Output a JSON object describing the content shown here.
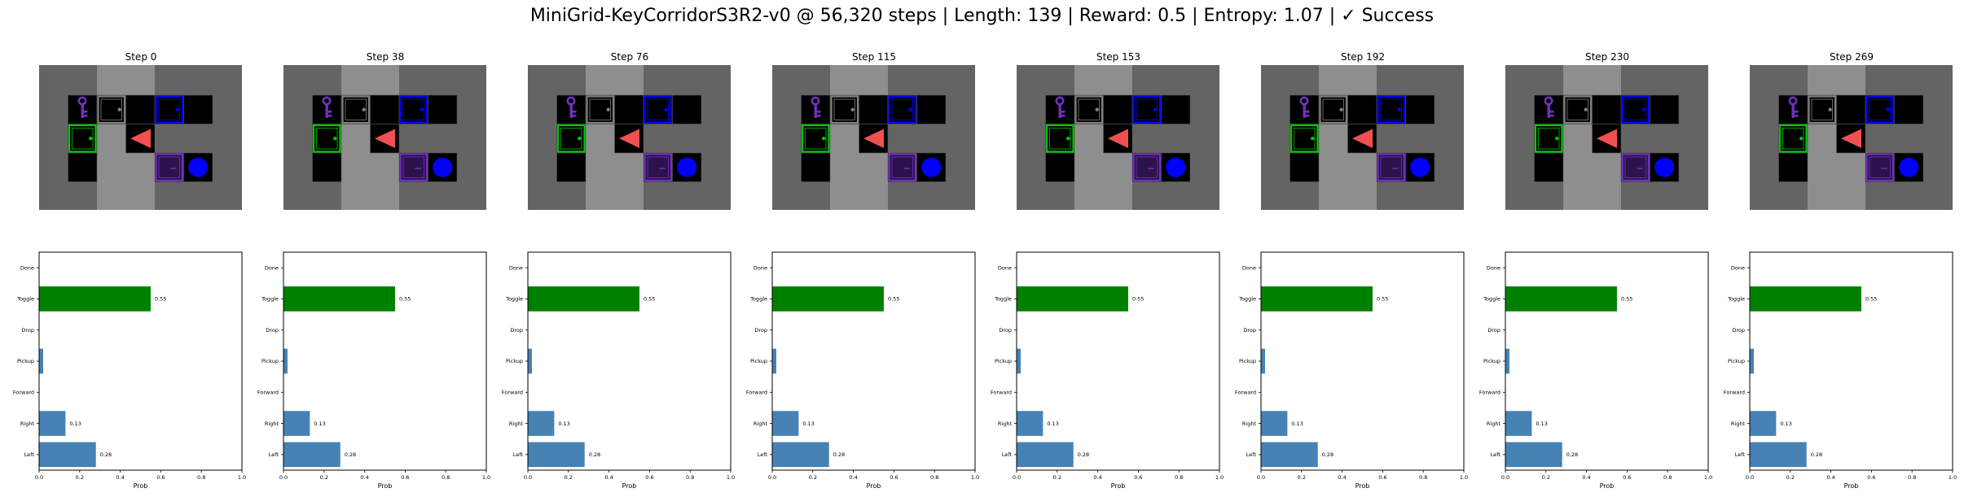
{
  "figure": {
    "title": "MiniGrid-KeyCorridorS3R2-v0 @ 56,320 steps | Length: 139 | Reward: 0.5 | Entropy: 1.07 | ✓ Success"
  },
  "environment": {
    "wall_color": "#646464",
    "corridor_color": "#8e8e8e",
    "cell_color": "#000000",
    "grid_line_color": "#555555",
    "agent_color": "#f05050",
    "agent_direction": "left",
    "key_color": "#7030c0",
    "ball_color": "#0000ff",
    "doors": [
      {
        "color": "#808080",
        "state": "closed"
      },
      {
        "color": "#0000ff",
        "state": "closed"
      },
      {
        "color": "#00c800",
        "state": "closed"
      },
      {
        "color": "#7030c0",
        "state": "locked"
      }
    ]
  },
  "chart_data": [
    {
      "type": "bar",
      "orientation": "horizontal",
      "title": "Step 0",
      "categories": [
        "Left",
        "Right",
        "Forward",
        "Pickup",
        "Drop",
        "Toggle",
        "Done"
      ],
      "values": [
        0.28,
        0.13,
        0,
        0.02,
        0,
        0.55,
        0
      ],
      "value_labels": [
        "0.28",
        "0.13",
        "",
        "",
        "",
        "0.55",
        ""
      ],
      "highlight_index": 5,
      "bar_color": "#4682b4",
      "highlight_color": "#008000",
      "xlabel": "Prob",
      "xlim": [
        0,
        1
      ],
      "xticks": [
        "0.0",
        "0.2",
        "0.4",
        "0.6",
        "0.8",
        "1.0"
      ]
    },
    {
      "type": "bar",
      "orientation": "horizontal",
      "title": "Step 38",
      "categories": [
        "Left",
        "Right",
        "Forward",
        "Pickup",
        "Drop",
        "Toggle",
        "Done"
      ],
      "values": [
        0.28,
        0.13,
        0,
        0.02,
        0,
        0.55,
        0
      ],
      "value_labels": [
        "0.28",
        "0.13",
        "",
        "",
        "",
        "0.55",
        ""
      ],
      "highlight_index": 5,
      "bar_color": "#4682b4",
      "highlight_color": "#008000",
      "xlabel": "Prob",
      "xlim": [
        0,
        1
      ],
      "xticks": [
        "0.0",
        "0.2",
        "0.4",
        "0.6",
        "0.8",
        "1.0"
      ]
    },
    {
      "type": "bar",
      "orientation": "horizontal",
      "title": "Step 76",
      "categories": [
        "Left",
        "Right",
        "Forward",
        "Pickup",
        "Drop",
        "Toggle",
        "Done"
      ],
      "values": [
        0.28,
        0.13,
        0,
        0.02,
        0,
        0.55,
        0
      ],
      "value_labels": [
        "0.28",
        "0.13",
        "",
        "",
        "",
        "0.55",
        ""
      ],
      "highlight_index": 5,
      "bar_color": "#4682b4",
      "highlight_color": "#008000",
      "xlabel": "Prob",
      "xlim": [
        0,
        1
      ],
      "xticks": [
        "0.0",
        "0.2",
        "0.4",
        "0.6",
        "0.8",
        "1.0"
      ]
    },
    {
      "type": "bar",
      "orientation": "horizontal",
      "title": "Step 115",
      "categories": [
        "Left",
        "Right",
        "Forward",
        "Pickup",
        "Drop",
        "Toggle",
        "Done"
      ],
      "values": [
        0.28,
        0.13,
        0,
        0.02,
        0,
        0.55,
        0
      ],
      "value_labels": [
        "0.28",
        "0.13",
        "",
        "",
        "",
        "0.55",
        ""
      ],
      "highlight_index": 5,
      "bar_color": "#4682b4",
      "highlight_color": "#008000",
      "xlabel": "Prob",
      "xlim": [
        0,
        1
      ],
      "xticks": [
        "0.0",
        "0.2",
        "0.4",
        "0.6",
        "0.8",
        "1.0"
      ]
    },
    {
      "type": "bar",
      "orientation": "horizontal",
      "title": "Step 153",
      "categories": [
        "Left",
        "Right",
        "Forward",
        "Pickup",
        "Drop",
        "Toggle",
        "Done"
      ],
      "values": [
        0.28,
        0.13,
        0,
        0.02,
        0,
        0.55,
        0
      ],
      "value_labels": [
        "0.28",
        "0.13",
        "",
        "",
        "",
        "0.55",
        ""
      ],
      "highlight_index": 5,
      "bar_color": "#4682b4",
      "highlight_color": "#008000",
      "xlabel": "Prob",
      "xlim": [
        0,
        1
      ],
      "xticks": [
        "0.0",
        "0.2",
        "0.4",
        "0.6",
        "0.8",
        "1.0"
      ]
    },
    {
      "type": "bar",
      "orientation": "horizontal",
      "title": "Step 192",
      "categories": [
        "Left",
        "Right",
        "Forward",
        "Pickup",
        "Drop",
        "Toggle",
        "Done"
      ],
      "values": [
        0.28,
        0.13,
        0,
        0.02,
        0,
        0.55,
        0
      ],
      "value_labels": [
        "0.28",
        "0.13",
        "",
        "",
        "",
        "0.55",
        ""
      ],
      "highlight_index": 5,
      "bar_color": "#4682b4",
      "highlight_color": "#008000",
      "xlabel": "Prob",
      "xlim": [
        0,
        1
      ],
      "xticks": [
        "0.0",
        "0.2",
        "0.4",
        "0.6",
        "0.8",
        "1.0"
      ]
    },
    {
      "type": "bar",
      "orientation": "horizontal",
      "title": "Step 230",
      "categories": [
        "Left",
        "Right",
        "Forward",
        "Pickup",
        "Drop",
        "Toggle",
        "Done"
      ],
      "values": [
        0.28,
        0.13,
        0,
        0.02,
        0,
        0.55,
        0
      ],
      "value_labels": [
        "0.28",
        "0.13",
        "",
        "",
        "",
        "0.55",
        ""
      ],
      "highlight_index": 5,
      "bar_color": "#4682b4",
      "highlight_color": "#008000",
      "xlabel": "Prob",
      "xlim": [
        0,
        1
      ],
      "xticks": [
        "0.0",
        "0.2",
        "0.4",
        "0.6",
        "0.8",
        "1.0"
      ]
    },
    {
      "type": "bar",
      "orientation": "horizontal",
      "title": "Step 269",
      "categories": [
        "Left",
        "Right",
        "Forward",
        "Pickup",
        "Drop",
        "Toggle",
        "Done"
      ],
      "values": [
        0.28,
        0.13,
        0,
        0.02,
        0,
        0.55,
        0
      ],
      "value_labels": [
        "0.28",
        "0.13",
        "",
        "",
        "",
        "0.55",
        ""
      ],
      "highlight_index": 5,
      "bar_color": "#4682b4",
      "highlight_color": "#008000",
      "xlabel": "Prob",
      "xlim": [
        0,
        1
      ],
      "xticks": [
        "0.0",
        "0.2",
        "0.4",
        "0.6",
        "0.8",
        "1.0"
      ]
    }
  ]
}
